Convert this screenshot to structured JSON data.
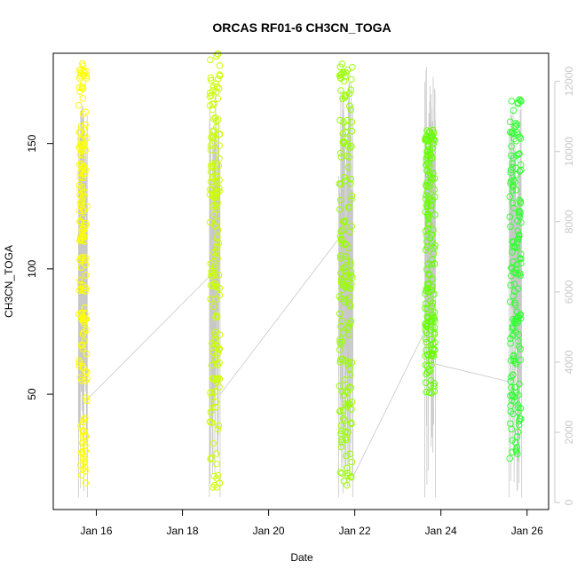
{
  "chart_data": {
    "type": "scatter",
    "title": "ORCAS RF01-6 CH3CN_TOGA",
    "xlabel": "Date",
    "ylabel": "CH3CN_TOGA",
    "x_range": [
      "2016-01-15T00:00",
      "2016-01-26T12:00"
    ],
    "xticks": [
      {
        "date": "2016-01-16",
        "label": "Jan 16"
      },
      {
        "date": "2016-01-18",
        "label": "Jan 18"
      },
      {
        "date": "2016-01-20",
        "label": "Jan 20"
      },
      {
        "date": "2016-01-22",
        "label": "Jan 22"
      },
      {
        "date": "2016-01-24",
        "label": "Jan 24"
      },
      {
        "date": "2016-01-26",
        "label": "Jan 26"
      }
    ],
    "ylim": [
      4,
      186
    ],
    "yticks": [
      50,
      100,
      150
    ],
    "y2lim": [
      -200,
      12800
    ],
    "y2ticks": [
      0,
      2000,
      4000,
      6000,
      8000,
      10000,
      12000
    ],
    "grid": false,
    "point_style": "open circles, colored by flight (yellow to green)",
    "secondary_series_color": "#c8c8c8",
    "flights": [
      {
        "flight": "RF01",
        "color": "#ffff00",
        "time_range": [
          "2016-01-15T14:00",
          "2016-01-15T19:00"
        ],
        "ch3cn_range": [
          11,
          183
        ],
        "altitude_range_m": [
          150,
          11800
        ]
      },
      {
        "flight": "RF02",
        "color": "#ccff00",
        "time_range": [
          "2016-01-18T15:00",
          "2016-01-18T21:00"
        ],
        "ch3cn_range": [
          10,
          186
        ],
        "altitude_range_m": [
          150,
          11900
        ]
      },
      {
        "flight": "RF03",
        "color": "#99ff00",
        "time_range": [
          "2016-01-21T15:00",
          "2016-01-21T23:00"
        ],
        "ch3cn_range": [
          11,
          182
        ],
        "altitude_range_m": [
          150,
          12000
        ]
      },
      {
        "flight": "RF04",
        "color": "#66ff00",
        "time_range": [
          "2016-01-23T15:00",
          "2016-01-23T21:00"
        ],
        "ch3cn_range": [
          49,
          158
        ],
        "altitude_range_m": [
          150,
          12500
        ]
      },
      {
        "flight": "RF05",
        "color": "#33ff33",
        "time_range": [
          "2016-01-25T14:00",
          "2016-01-25T21:00"
        ],
        "ch3cn_range": [
          21,
          169
        ],
        "altitude_range_m": [
          150,
          11700
        ]
      }
    ]
  }
}
